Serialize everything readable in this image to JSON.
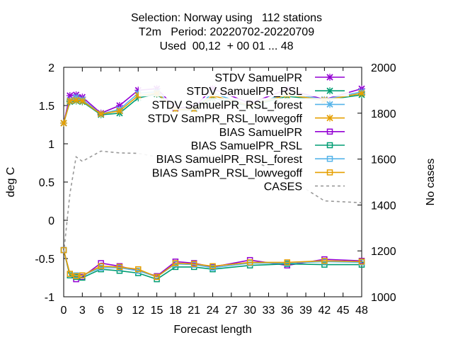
{
  "chart_data": {
    "type": "line",
    "title_lines": [
      "Selection: Norway using   112 stations",
      "T2m   Period: 20220702-20220709",
      "Used  00,12  + 00 01 ... 48"
    ],
    "xlabel": "Forecast length",
    "ylabel": "deg C",
    "y2label": "No cases",
    "xlim": [
      0,
      48
    ],
    "ylim": [
      -1,
      2
    ],
    "y2lim": [
      1000,
      2000
    ],
    "xticks": [
      "0",
      "3",
      "6",
      "9",
      "12",
      "15",
      "18",
      "21",
      "24",
      "27",
      "30",
      "33",
      "36",
      "39",
      "42",
      "45",
      "48"
    ],
    "yticks": [
      "-1",
      "-0.5",
      "0",
      "0.5",
      "1",
      "1.5",
      "2"
    ],
    "y2ticks": [
      "1000",
      "1200",
      "1400",
      "1600",
      "1800",
      "2000"
    ],
    "legend_position": "top-right",
    "x": [
      0,
      1,
      2,
      3,
      6,
      9,
      12,
      15,
      18,
      21,
      24,
      30,
      36,
      42,
      48
    ],
    "series": [
      {
        "name": "STDV SamuelPR",
        "color": "#9400d3",
        "marker": "x",
        "axis": "y",
        "values": [
          1.27,
          1.63,
          1.64,
          1.61,
          1.4,
          1.5,
          1.7,
          1.72,
          1.47,
          1.48,
          1.72,
          1.53,
          1.71,
          1.58,
          1.72
        ]
      },
      {
        "name": "STDV SamuelPR_RSL",
        "color": "#009e73",
        "marker": "x",
        "axis": "y",
        "values": [
          1.27,
          1.55,
          1.56,
          1.55,
          1.38,
          1.4,
          1.6,
          1.65,
          1.45,
          1.45,
          1.6,
          1.49,
          1.62,
          1.57,
          1.64
        ]
      },
      {
        "name": "STDV SamuelPR_RSL_forest",
        "color": "#56b4e9",
        "marker": "x",
        "axis": "y",
        "values": [
          1.27,
          1.57,
          1.61,
          1.58,
          1.39,
          1.45,
          1.66,
          1.68,
          1.45,
          1.46,
          1.66,
          1.5,
          1.66,
          1.58,
          1.68
        ]
      },
      {
        "name": "STDV SamPR_RSL_lowvegoff",
        "color": "#e69f00",
        "marker": "x",
        "axis": "y",
        "values": [
          1.27,
          1.56,
          1.57,
          1.56,
          1.39,
          1.43,
          1.63,
          1.66,
          1.45,
          1.45,
          1.63,
          1.5,
          1.64,
          1.57,
          1.66
        ]
      },
      {
        "name": "BIAS SamuelPR",
        "color": "#9400d3",
        "marker": "square",
        "axis": "y",
        "values": [
          -0.39,
          -0.72,
          -0.77,
          -0.74,
          -0.56,
          -0.6,
          -0.66,
          -0.73,
          -0.54,
          -0.56,
          -0.61,
          -0.52,
          -0.59,
          -0.51,
          -0.53
        ]
      },
      {
        "name": "BIAS SamuelPR_RSL",
        "color": "#009e73",
        "marker": "square",
        "axis": "y",
        "values": [
          -0.39,
          -0.72,
          -0.74,
          -0.75,
          -0.64,
          -0.66,
          -0.69,
          -0.77,
          -0.61,
          -0.61,
          -0.64,
          -0.59,
          -0.57,
          -0.58,
          -0.58
        ]
      },
      {
        "name": "BIAS SamuelPR_RSL_forest",
        "color": "#56b4e9",
        "marker": "square",
        "axis": "y",
        "values": [
          -0.39,
          -0.7,
          -0.72,
          -0.72,
          -0.62,
          -0.62,
          -0.66,
          -0.74,
          -0.57,
          -0.58,
          -0.62,
          -0.56,
          -0.56,
          -0.54,
          -0.55
        ]
      },
      {
        "name": "BIAS SamPR_RSL_lowvegoff",
        "color": "#e69f00",
        "marker": "square",
        "axis": "y",
        "values": [
          -0.39,
          -0.7,
          -0.73,
          -0.72,
          -0.6,
          -0.61,
          -0.64,
          -0.74,
          -0.56,
          -0.57,
          -0.6,
          -0.55,
          -0.55,
          -0.53,
          -0.54
        ]
      },
      {
        "name": "CASES",
        "color": "#999999",
        "marker": "none",
        "dashed": true,
        "axis": "y2",
        "values": [
          1190,
          1450,
          1610,
          1590,
          1635,
          1627,
          1625,
          1610,
          1612,
          1612,
          1615,
          1602,
          1520,
          1418,
          1410
        ]
      }
    ]
  }
}
